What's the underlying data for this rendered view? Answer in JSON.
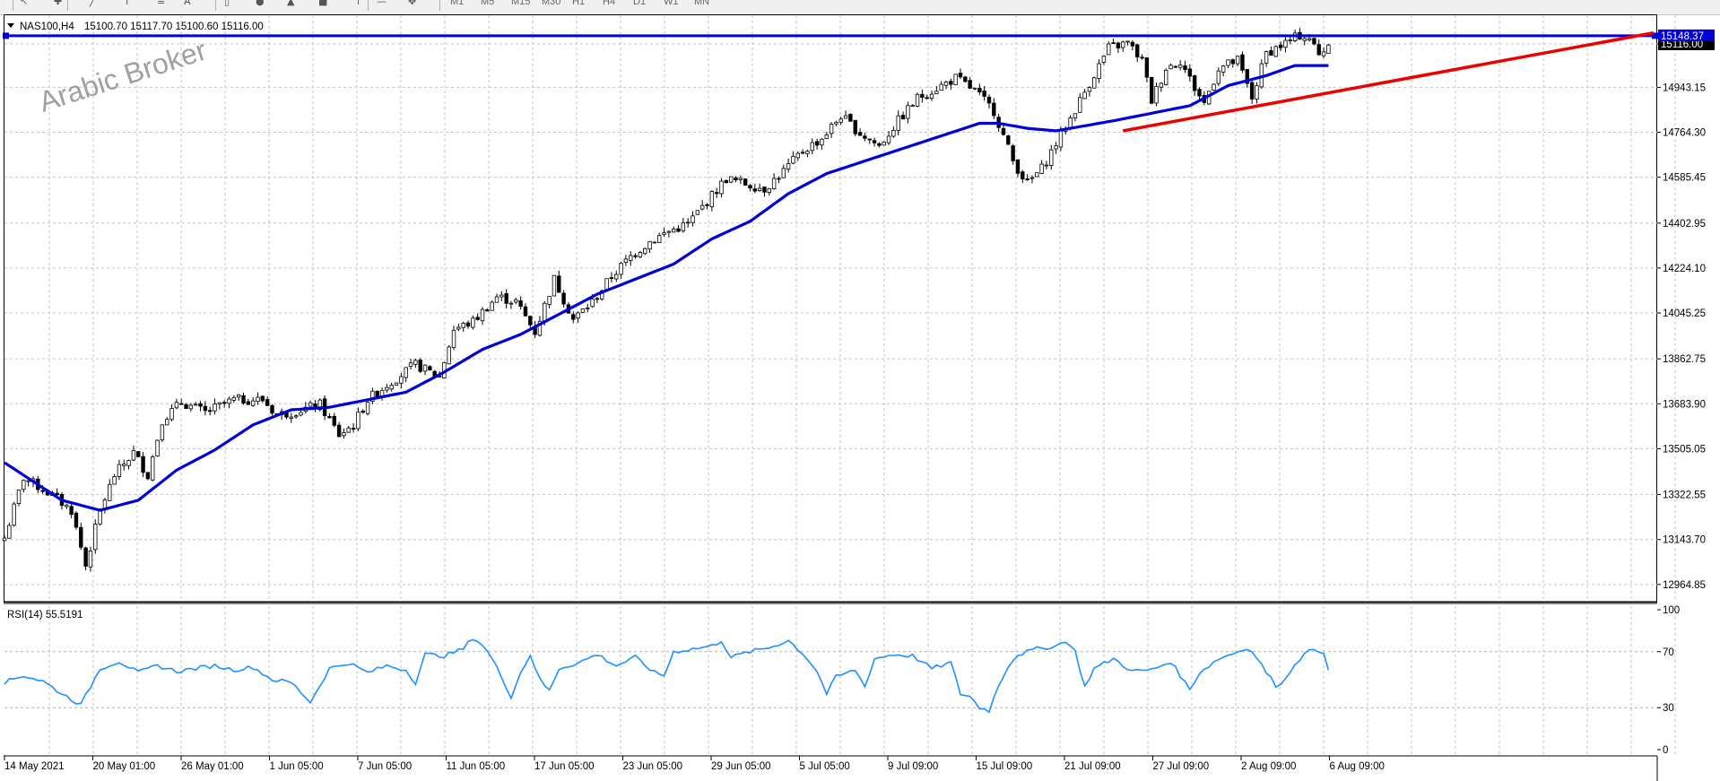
{
  "toolbar": {
    "icons": [
      "cursor-icon",
      "crosshair-icon",
      "line-icon",
      "fibonacci-icon",
      "channel-icon",
      "text-icon",
      "rectangle-icon",
      "circle-icon",
      "triangle-icon",
      "square-icon",
      "arrow-icon",
      "hline-icon",
      "move-icon"
    ],
    "timeframes": [
      "M1",
      "M5",
      "M15",
      "M30",
      "H1",
      "H4",
      "D1",
      "W1",
      "MN"
    ]
  },
  "colors": {
    "candle": "#000000",
    "ma": "#0000dd",
    "hline": "#0000dd",
    "trendline": "#ee0000",
    "rsi": "#1e90ff",
    "grid": "#c0c0c0",
    "watermark": "#a0a0a0"
  },
  "chart_data": [
    {
      "type": "candlestick",
      "title": "NAS100,H4",
      "ohlc_info": "15100.70 15117.70 15100.60 15116.00",
      "ylim": [
        12900,
        15230
      ],
      "y_ticks": [
        "15116.00",
        "14943.15",
        "14764.30",
        "14585.45",
        "14402.95",
        "14224.10",
        "14045.25",
        "13862.75",
        "13683.90",
        "13505.05",
        "13322.55",
        "13143.70",
        "12964.85"
      ],
      "y_tick_values": [
        15116.0,
        14943.15,
        14764.3,
        14585.45,
        14402.95,
        14224.1,
        14045.25,
        13862.75,
        13683.9,
        13505.05,
        13322.55,
        13143.7,
        12964.85
      ],
      "current_price_label": "15116.00",
      "hline_label": "15148.37",
      "hline_value": 15148.37,
      "watermark": "Arabic Broker",
      "x_tick_labels": [
        "14 May 2021",
        "20 May 01:00",
        "26 May 01:00",
        "1 Jun 05:00",
        "7 Jun 05:00",
        "11 Jun 05:00",
        "17 Jun 05:00",
        "23 Jun 05:00",
        "29 Jun 05:00",
        "5 Jul 05:00",
        "9 Jul 09:00",
        "15 Jul 09:00",
        "21 Jul 09:00",
        "27 Jul 09:00",
        "2 Aug 09:00",
        "6 Aug 09:00"
      ],
      "close_anchors": [
        [
          0,
          13150
        ],
        [
          4,
          13390
        ],
        [
          10,
          13320
        ],
        [
          14,
          13260
        ],
        [
          17,
          13040
        ],
        [
          20,
          13260
        ],
        [
          23,
          13400
        ],
        [
          27,
          13490
        ],
        [
          30,
          13400
        ],
        [
          33,
          13620
        ],
        [
          37,
          13690
        ],
        [
          42,
          13650
        ],
        [
          48,
          13700
        ],
        [
          54,
          13700
        ],
        [
          57,
          13640
        ],
        [
          60,
          13650
        ],
        [
          66,
          13680
        ],
        [
          70,
          13560
        ],
        [
          73,
          13600
        ],
        [
          76,
          13700
        ],
        [
          80,
          13760
        ],
        [
          86,
          13840
        ],
        [
          91,
          13790
        ],
        [
          94,
          13980
        ],
        [
          98,
          14010
        ],
        [
          103,
          14110
        ],
        [
          107,
          14090
        ],
        [
          111,
          13970
        ],
        [
          115,
          14180
        ],
        [
          119,
          14020
        ],
        [
          123,
          14090
        ],
        [
          127,
          14190
        ],
        [
          131,
          14270
        ],
        [
          135,
          14330
        ],
        [
          139,
          14370
        ],
        [
          143,
          14400
        ],
        [
          147,
          14490
        ],
        [
          151,
          14580
        ],
        [
          155,
          14560
        ],
        [
          159,
          14540
        ],
        [
          163,
          14610
        ],
        [
          167,
          14690
        ],
        [
          171,
          14740
        ],
        [
          175,
          14830
        ],
        [
          179,
          14760
        ],
        [
          183,
          14710
        ],
        [
          187,
          14810
        ],
        [
          191,
          14900
        ],
        [
          195,
          14940
        ],
        [
          199,
          14980
        ],
        [
          203,
          14930
        ],
        [
          207,
          14850
        ],
        [
          211,
          14650
        ],
        [
          214,
          14560
        ],
        [
          217,
          14620
        ],
        [
          220,
          14720
        ],
        [
          223,
          14820
        ],
        [
          227,
          14960
        ],
        [
          231,
          15100
        ],
        [
          235,
          15120
        ],
        [
          238,
          15050
        ],
        [
          240,
          14890
        ],
        [
          243,
          15020
        ],
        [
          246,
          15050
        ],
        [
          249,
          14940
        ],
        [
          251,
          14880
        ],
        [
          254,
          15020
        ],
        [
          258,
          15050
        ],
        [
          261,
          14900
        ],
        [
          264,
          15080
        ],
        [
          268,
          15120
        ],
        [
          271,
          15150
        ],
        [
          273,
          15140
        ],
        [
          275,
          15070
        ],
        [
          277,
          15116
        ]
      ],
      "ma_points": [
        [
          0,
          13450
        ],
        [
          12,
          13300
        ],
        [
          20,
          13260
        ],
        [
          28,
          13300
        ],
        [
          36,
          13420
        ],
        [
          44,
          13500
        ],
        [
          52,
          13600
        ],
        [
          60,
          13660
        ],
        [
          68,
          13670
        ],
        [
          76,
          13700
        ],
        [
          84,
          13730
        ],
        [
          92,
          13810
        ],
        [
          100,
          13900
        ],
        [
          108,
          13960
        ],
        [
          116,
          14040
        ],
        [
          124,
          14120
        ],
        [
          132,
          14180
        ],
        [
          140,
          14240
        ],
        [
          148,
          14340
        ],
        [
          156,
          14410
        ],
        [
          164,
          14520
        ],
        [
          172,
          14600
        ],
        [
          180,
          14650
        ],
        [
          188,
          14700
        ],
        [
          196,
          14750
        ],
        [
          204,
          14800
        ],
        [
          208,
          14800
        ],
        [
          214,
          14780
        ],
        [
          220,
          14770
        ],
        [
          226,
          14790
        ],
        [
          232,
          14810
        ],
        [
          240,
          14840
        ],
        [
          248,
          14870
        ],
        [
          256,
          14950
        ],
        [
          264,
          14990
        ],
        [
          270,
          15030
        ],
        [
          277,
          15030
        ]
      ],
      "trendline": [
        [
          234,
          14770
        ],
        [
          345,
          15160
        ]
      ],
      "n_candles": 278
    },
    {
      "type": "line",
      "title": "RSI(14) 55.5191",
      "ylim": [
        0,
        100
      ],
      "y_ticks": [
        "100",
        "70",
        "30",
        "0"
      ],
      "y_tick_values": [
        100,
        70,
        30,
        0
      ],
      "rsi_anchors": [
        [
          0,
          48
        ],
        [
          4,
          53
        ],
        [
          8,
          49
        ],
        [
          12,
          40
        ],
        [
          16,
          32
        ],
        [
          20,
          58
        ],
        [
          24,
          63
        ],
        [
          28,
          55
        ],
        [
          32,
          60
        ],
        [
          36,
          56
        ],
        [
          40,
          58
        ],
        [
          44,
          60
        ],
        [
          48,
          57
        ],
        [
          52,
          59
        ],
        [
          56,
          50
        ],
        [
          60,
          48
        ],
        [
          64,
          34
        ],
        [
          68,
          58
        ],
        [
          72,
          62
        ],
        [
          76,
          55
        ],
        [
          80,
          60
        ],
        [
          84,
          57
        ],
        [
          86,
          48
        ],
        [
          88,
          68
        ],
        [
          92,
          67
        ],
        [
          96,
          72
        ],
        [
          98,
          80
        ],
        [
          100,
          75
        ],
        [
          102,
          65
        ],
        [
          104,
          52
        ],
        [
          106,
          38
        ],
        [
          108,
          55
        ],
        [
          110,
          68
        ],
        [
          112,
          50
        ],
        [
          114,
          42
        ],
        [
          116,
          58
        ],
        [
          120,
          62
        ],
        [
          124,
          68
        ],
        [
          128,
          60
        ],
        [
          132,
          66
        ],
        [
          136,
          55
        ],
        [
          138,
          53
        ],
        [
          140,
          70
        ],
        [
          144,
          72
        ],
        [
          148,
          74
        ],
        [
          150,
          78
        ],
        [
          152,
          66
        ],
        [
          156,
          70
        ],
        [
          160,
          73
        ],
        [
          164,
          78
        ],
        [
          166,
          72
        ],
        [
          168,
          65
        ],
        [
          170,
          56
        ],
        [
          172,
          40
        ],
        [
          174,
          52
        ],
        [
          178,
          57
        ],
        [
          180,
          45
        ],
        [
          182,
          65
        ],
        [
          186,
          68
        ],
        [
          190,
          67
        ],
        [
          194,
          58
        ],
        [
          198,
          62
        ],
        [
          200,
          40
        ],
        [
          202,
          38
        ],
        [
          204,
          30
        ],
        [
          206,
          28
        ],
        [
          208,
          46
        ],
        [
          210,
          60
        ],
        [
          212,
          68
        ],
        [
          216,
          72
        ],
        [
          220,
          74
        ],
        [
          222,
          78
        ],
        [
          224,
          70
        ],
        [
          226,
          45
        ],
        [
          228,
          58
        ],
        [
          232,
          65
        ],
        [
          236,
          56
        ],
        [
          240,
          57
        ],
        [
          244,
          63
        ],
        [
          246,
          53
        ],
        [
          248,
          43
        ],
        [
          250,
          55
        ],
        [
          254,
          65
        ],
        [
          258,
          70
        ],
        [
          260,
          73
        ],
        [
          262,
          66
        ],
        [
          264,
          55
        ],
        [
          266,
          46
        ],
        [
          268,
          50
        ],
        [
          270,
          62
        ],
        [
          272,
          68
        ],
        [
          274,
          72
        ],
        [
          276,
          70
        ],
        [
          277,
          55.5
        ]
      ],
      "levels": [
        70,
        30
      ]
    }
  ]
}
